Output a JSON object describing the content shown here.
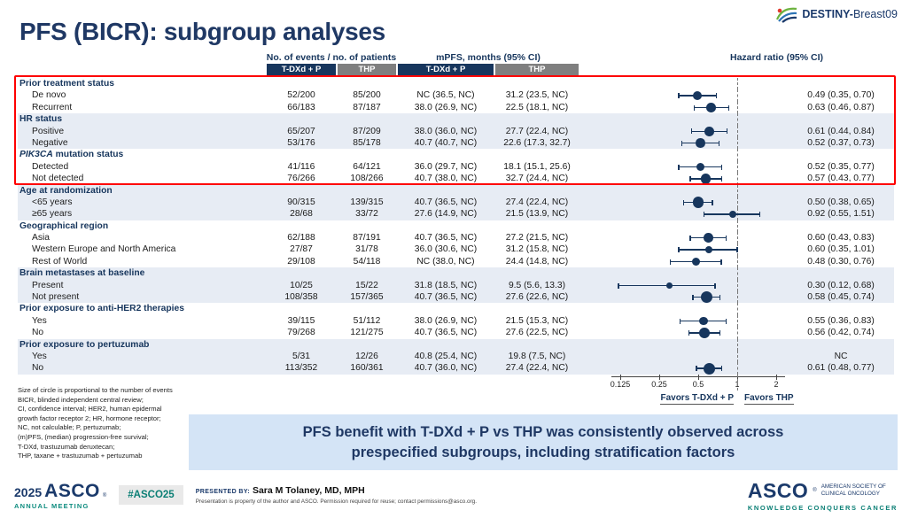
{
  "title": "PFS (BICR): subgroup analyses",
  "logo": {
    "brand_bold": "DESTINY-",
    "brand_rest": "Breast09"
  },
  "colors": {
    "navy": "#17365d",
    "header_gray": "#7f7f7f",
    "stripe": "#e7ecf4",
    "highlight_red": "#fe0000",
    "banner_bg": "#d4e4f6",
    "teal": "#0b7f75"
  },
  "table": {
    "header": {
      "events": "No. of events / no. of patients",
      "mpfs": "mPFS, months (95% CI)",
      "hazard": "Hazard ratio (95% CI)",
      "arm1": "T-DXd + P",
      "arm2": "THP"
    }
  },
  "chart_data": {
    "type": "forest",
    "xscale": "log2",
    "axis_ticks": [
      0.125,
      0.25,
      0.5,
      1,
      2
    ],
    "reference_line": 1,
    "favors_left": "Favors T-DXd + P",
    "favors_right": "Favors THP",
    "note": "Size of circle is proportional to the number of events",
    "groups": [
      {
        "label": "Prior treatment status",
        "rows": [
          {
            "label": "De novo",
            "ev1": "52/200",
            "ev2": "85/200",
            "pfs1": "NC (36.5, NC)",
            "pfs2": "31.2 (23.5, NC)",
            "hr_text": "0.49 (0.35, 0.70)",
            "hr": 0.49,
            "lo": 0.35,
            "hi": 0.7,
            "n": 137
          },
          {
            "label": "Recurrent",
            "ev1": "66/183",
            "ev2": "87/187",
            "pfs1": "38.0 (26.9, NC)",
            "pfs2": "22.5 (18.1, NC)",
            "hr_text": "0.63 (0.46, 0.87)",
            "hr": 0.63,
            "lo": 0.46,
            "hi": 0.87,
            "n": 153
          }
        ]
      },
      {
        "label": "HR status",
        "rows": [
          {
            "label": "Positive",
            "ev1": "65/207",
            "ev2": "87/209",
            "pfs1": "38.0 (36.0, NC)",
            "pfs2": "27.7 (22.4, NC)",
            "hr_text": "0.61 (0.44, 0.84)",
            "hr": 0.61,
            "lo": 0.44,
            "hi": 0.84,
            "n": 152
          },
          {
            "label": "Negative",
            "ev1": "53/176",
            "ev2": "85/178",
            "pfs1": "40.7 (40.7, NC)",
            "pfs2": "22.6 (17.3, 32.7)",
            "hr_text": "0.52 (0.37, 0.73)",
            "hr": 0.52,
            "lo": 0.37,
            "hi": 0.73,
            "n": 138
          }
        ]
      },
      {
        "label_em": "PIK3CA",
        "label": " mutation status",
        "rows": [
          {
            "label": "Detected",
            "ev1": "41/116",
            "ev2": "64/121",
            "pfs1": "36.0 (29.7, NC)",
            "pfs2": "18.1 (15.1, 25.6)",
            "hr_text": "0.52 (0.35, 0.77)",
            "hr": 0.52,
            "lo": 0.35,
            "hi": 0.77,
            "n": 105
          },
          {
            "label": "Not detected",
            "ev1": "76/266",
            "ev2": "108/266",
            "pfs1": "40.7 (38.0, NC)",
            "pfs2": "32.7 (24.4, NC)",
            "hr_text": "0.57 (0.43, 0.77)",
            "hr": 0.57,
            "lo": 0.43,
            "hi": 0.77,
            "n": 184
          }
        ]
      },
      {
        "label": "Age at randomization",
        "rows": [
          {
            "label": "<65 years",
            "ev1": "90/315",
            "ev2": "139/315",
            "pfs1": "40.7 (36.5, NC)",
            "pfs2": "27.4 (22.4, NC)",
            "hr_text": "0.50 (0.38, 0.65)",
            "hr": 0.5,
            "lo": 0.38,
            "hi": 0.65,
            "n": 229
          },
          {
            "label": "≥65 years",
            "ev1": "28/68",
            "ev2": "33/72",
            "pfs1": "27.6 (14.9, NC)",
            "pfs2": "21.5 (13.9, NC)",
            "hr_text": "0.92 (0.55, 1.51)",
            "hr": 0.92,
            "lo": 0.55,
            "hi": 1.51,
            "n": 61
          }
        ]
      },
      {
        "label": "Geographical region",
        "rows": [
          {
            "label": "Asia",
            "ev1": "62/188",
            "ev2": "87/191",
            "pfs1": "40.7 (36.5, NC)",
            "pfs2": "27.2 (21.5, NC)",
            "hr_text": "0.60 (0.43, 0.83)",
            "hr": 0.6,
            "lo": 0.43,
            "hi": 0.83,
            "n": 149
          },
          {
            "label": "Western Europe and North America",
            "ev1": "27/87",
            "ev2": "31/78",
            "pfs1": "36.0 (30.6, NC)",
            "pfs2": "31.2 (15.8, NC)",
            "hr_text": "0.60 (0.35, 1.01)",
            "hr": 0.6,
            "lo": 0.35,
            "hi": 1.01,
            "n": 58
          },
          {
            "label": "Rest of World",
            "ev1": "29/108",
            "ev2": "54/118",
            "pfs1": "NC (38.0, NC)",
            "pfs2": "24.4 (14.8, NC)",
            "hr_text": "0.48 (0.30, 0.76)",
            "hr": 0.48,
            "lo": 0.3,
            "hi": 0.76,
            "n": 83
          }
        ]
      },
      {
        "label": "Brain metastases at baseline",
        "rows": [
          {
            "label": "Present",
            "ev1": "10/25",
            "ev2": "15/22",
            "pfs1": "31.8 (18.5, NC)",
            "pfs2": "9.5 (5.6, 13.3)",
            "hr_text": "0.30 (0.12, 0.68)",
            "hr": 0.3,
            "lo": 0.12,
            "hi": 0.68,
            "n": 25
          },
          {
            "label": "Not present",
            "ev1": "108/358",
            "ev2": "157/365",
            "pfs1": "40.7 (36.5, NC)",
            "pfs2": "27.6 (22.6, NC)",
            "hr_text": "0.58 (0.45, 0.74)",
            "hr": 0.58,
            "lo": 0.45,
            "hi": 0.74,
            "n": 265
          }
        ]
      },
      {
        "label": "Prior exposure to anti-HER2 therapies",
        "rows": [
          {
            "label": "Yes",
            "ev1": "39/115",
            "ev2": "51/112",
            "pfs1": "38.0 (26.9, NC)",
            "pfs2": "21.5 (15.3, NC)",
            "hr_text": "0.55 (0.36, 0.83)",
            "hr": 0.55,
            "lo": 0.36,
            "hi": 0.83,
            "n": 90
          },
          {
            "label": "No",
            "ev1": "79/268",
            "ev2": "121/275",
            "pfs1": "40.7 (36.5, NC)",
            "pfs2": "27.6 (22.5, NC)",
            "hr_text": "0.56 (0.42, 0.74)",
            "hr": 0.56,
            "lo": 0.42,
            "hi": 0.74,
            "n": 200
          }
        ]
      },
      {
        "label": "Prior exposure to pertuzumab",
        "rows": [
          {
            "label": "Yes",
            "ev1": "5/31",
            "ev2": "12/26",
            "pfs1": "40.8 (25.4, NC)",
            "pfs2": "19.8 (7.5, NC)",
            "hr_text": "NC",
            "hr": null,
            "lo": null,
            "hi": null,
            "n": 17
          },
          {
            "label": "No",
            "ev1": "113/352",
            "ev2": "160/361",
            "pfs1": "40.7 (36.0, NC)",
            "pfs2": "27.4 (22.4, NC)",
            "hr_text": "0.61 (0.48, 0.77)",
            "hr": 0.61,
            "lo": 0.48,
            "hi": 0.77,
            "n": 273
          }
        ]
      }
    ]
  },
  "footnote": {
    "lines": [
      "Size of circle is proportional to the number of events",
      "BICR, blinded independent central review;",
      "CI, confidence interval; HER2, human epidermal",
      "growth factor receptor 2; HR, hormone receptor;",
      "NC, not calculable; P, pertuzumab;",
      "(m)PFS, (median) progression-free survival;",
      "T-DXd, trastuzumab deruxtecan;",
      "THP, taxane + trastuzumab + pertuzumab"
    ]
  },
  "banner": {
    "line1": "PFS benefit with T-DXd + P vs THP was consistently observed across",
    "line2": "prespecified subgroups, including stratification factors"
  },
  "footer": {
    "meeting_year": "2025",
    "meeting_name": "ASCO",
    "meeting_reg": "®",
    "meeting_sub": "ANNUAL MEETING",
    "hashtag": "#ASCO25",
    "presented_label": "PRESENTED BY:",
    "presenter": "Sara M Tolaney, MD, MPH",
    "disclaimer": "Presentation is property of the author and ASCO. Permission required for reuse; contact permissions@asco.org.",
    "asco_name": "ASCO",
    "asco_reg": "®",
    "asco_org1": "AMERICAN SOCIETY OF",
    "asco_org2": "CLINICAL ONCOLOGY",
    "asco_tagline": "KNOWLEDGE CONQUERS CANCER"
  }
}
